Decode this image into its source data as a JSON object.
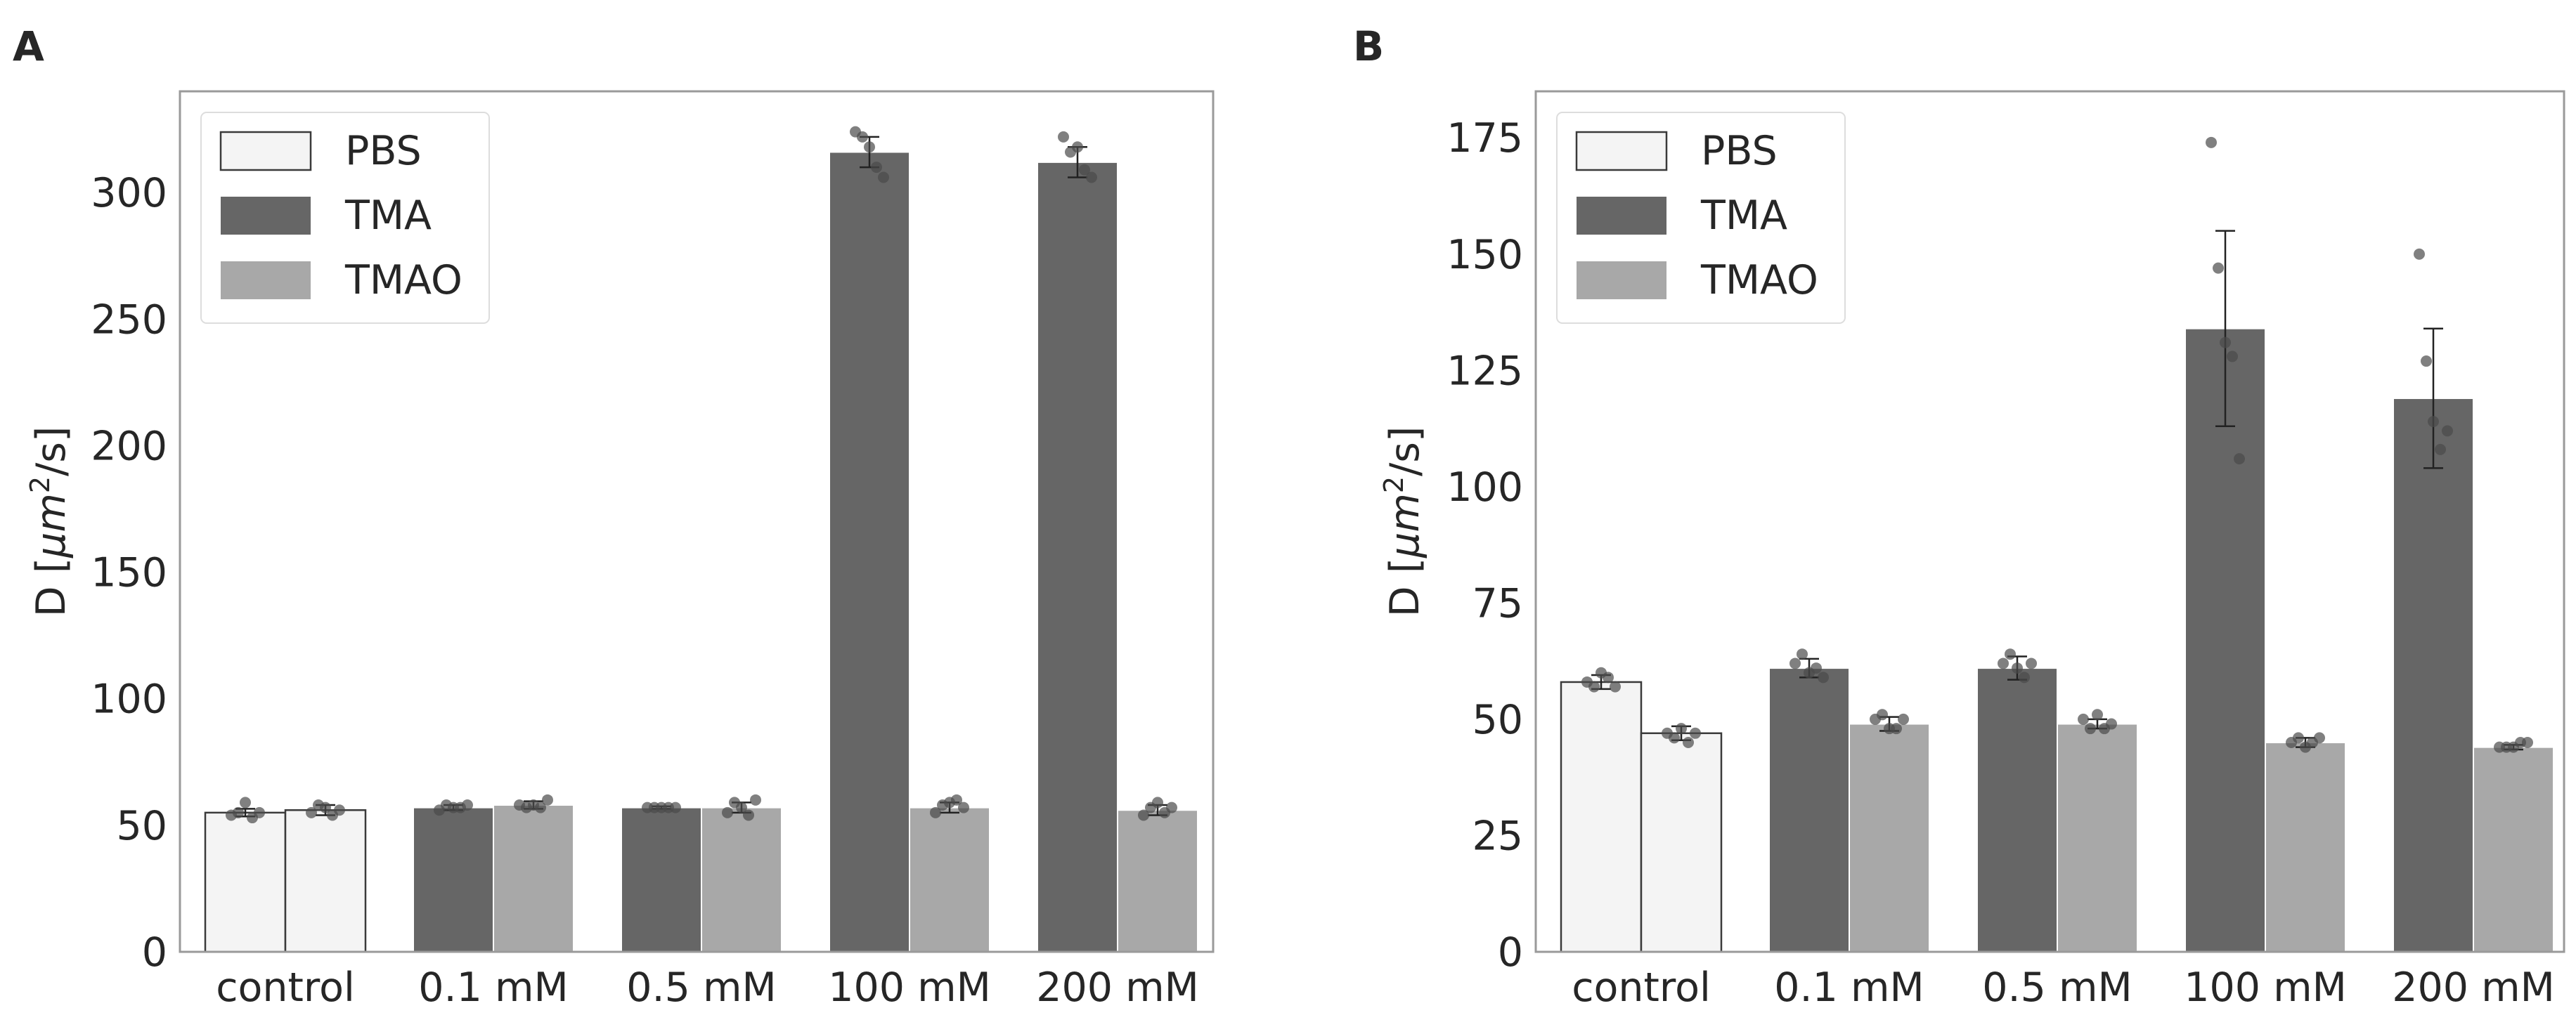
{
  "chart_data": [
    {
      "panel": "A",
      "type": "bar",
      "ylabel_prefix": "D [",
      "ylabel_unit_mu": "μ",
      "ylabel_unit_m": "m",
      "ylabel_unit_sup": "2",
      "ylabel_suffix": "/s]",
      "xlabel": "",
      "ylim": [
        0,
        340
      ],
      "yticks": [
        0,
        50,
        100,
        150,
        200,
        250,
        300
      ],
      "categories": [
        "control",
        "0.1 mM",
        "0.5 mM",
        "100 mM",
        "200 mM"
      ],
      "legend": {
        "placement": "top-left",
        "entries": [
          {
            "label": "PBS",
            "color": "#f4f4f4"
          },
          {
            "label": "TMA",
            "color": "#666666"
          },
          {
            "label": "TMAO",
            "color": "#a8a8a8"
          }
        ]
      },
      "bars": [
        {
          "category": "control",
          "slot": 0,
          "series": "PBS",
          "value": 55,
          "err": 1.5,
          "points": [
            54,
            55,
            59,
            53,
            55
          ]
        },
        {
          "category": "control",
          "slot": 1,
          "series": "PBS",
          "value": 56,
          "err": 2,
          "points": [
            55,
            58,
            57,
            54,
            56
          ]
        },
        {
          "category": "0.1 mM",
          "slot": 0,
          "series": "TMA",
          "value": 57,
          "err": 1,
          "points": [
            56,
            58,
            57,
            57,
            58
          ]
        },
        {
          "category": "0.1 mM",
          "slot": 1,
          "series": "TMAO",
          "value": 58,
          "err": 1.5,
          "points": [
            58,
            57,
            58,
            57,
            60
          ]
        },
        {
          "category": "0.5 mM",
          "slot": 0,
          "series": "TMA",
          "value": 57,
          "err": 0.5,
          "points": [
            57,
            57,
            57,
            57,
            57
          ]
        },
        {
          "category": "0.5 mM",
          "slot": 1,
          "series": "TMAO",
          "value": 57,
          "err": 2,
          "points": [
            55,
            59,
            57,
            54,
            60
          ]
        },
        {
          "category": "100 mM",
          "slot": 0,
          "series": "TMA",
          "value": 316,
          "err": 6,
          "points": [
            324,
            322,
            318,
            310,
            306
          ]
        },
        {
          "category": "100 mM",
          "slot": 1,
          "series": "TMAO",
          "value": 57,
          "err": 2,
          "points": [
            55,
            58,
            59,
            60,
            57
          ]
        },
        {
          "category": "200 mM",
          "slot": 0,
          "series": "TMA",
          "value": 312,
          "err": 6,
          "points": [
            322,
            316,
            318,
            309,
            306
          ]
        },
        {
          "category": "200 mM",
          "slot": 1,
          "series": "TMAO",
          "value": 56,
          "err": 2,
          "points": [
            54,
            57,
            59,
            55,
            57
          ]
        }
      ]
    },
    {
      "panel": "B",
      "type": "bar",
      "ylabel_prefix": "D [",
      "ylabel_unit_mu": "μ",
      "ylabel_unit_m": "m",
      "ylabel_unit_sup": "2",
      "ylabel_suffix": "/s]",
      "xlabel": "",
      "ylim": [
        0,
        185
      ],
      "yticks": [
        0,
        25,
        50,
        75,
        100,
        125,
        150,
        175
      ],
      "categories": [
        "control",
        "0.1 mM",
        "0.5 mM",
        "100 mM",
        "200 mM"
      ],
      "legend": {
        "placement": "top-left",
        "entries": [
          {
            "label": "PBS",
            "color": "#f4f4f4"
          },
          {
            "label": "TMA",
            "color": "#666666"
          },
          {
            "label": "TMAO",
            "color": "#a8a8a8"
          }
        ]
      },
      "bars": [
        {
          "category": "control",
          "slot": 0,
          "series": "PBS",
          "value": 58,
          "err": 1.5,
          "points": [
            58,
            57,
            60,
            59,
            57
          ]
        },
        {
          "category": "control",
          "slot": 1,
          "series": "PBS",
          "value": 47,
          "err": 1.5,
          "points": [
            47,
            46,
            48,
            45,
            47
          ]
        },
        {
          "category": "0.1 mM",
          "slot": 0,
          "series": "TMA",
          "value": 61,
          "err": 2,
          "points": [
            62,
            64,
            60,
            61,
            59
          ]
        },
        {
          "category": "0.1 mM",
          "slot": 1,
          "series": "TMAO",
          "value": 49,
          "err": 1.5,
          "points": [
            50,
            51,
            48,
            48,
            50
          ]
        },
        {
          "category": "0.5 mM",
          "slot": 0,
          "series": "TMA",
          "value": 61,
          "err": 2.5,
          "points": [
            62,
            64,
            61,
            59,
            62
          ]
        },
        {
          "category": "0.5 mM",
          "slot": 1,
          "series": "TMAO",
          "value": 49,
          "err": 1,
          "points": [
            50,
            48,
            51,
            48,
            49
          ]
        },
        {
          "category": "100 mM",
          "slot": 0,
          "series": "TMA",
          "value": 134,
          "err": 21,
          "points": [
            174,
            147,
            131,
            128,
            106
          ]
        },
        {
          "category": "100 mM",
          "slot": 1,
          "series": "TMAO",
          "value": 45,
          "err": 1,
          "points": [
            45,
            46,
            44,
            45,
            46
          ]
        },
        {
          "category": "200 mM",
          "slot": 0,
          "series": "TMA",
          "value": 119,
          "err": 15,
          "points": [
            150,
            127,
            114,
            108,
            112
          ]
        },
        {
          "category": "200 mM",
          "slot": 1,
          "series": "TMAO",
          "value": 44,
          "err": 0.5,
          "points": [
            44,
            44,
            44,
            45,
            45
          ]
        }
      ]
    }
  ]
}
